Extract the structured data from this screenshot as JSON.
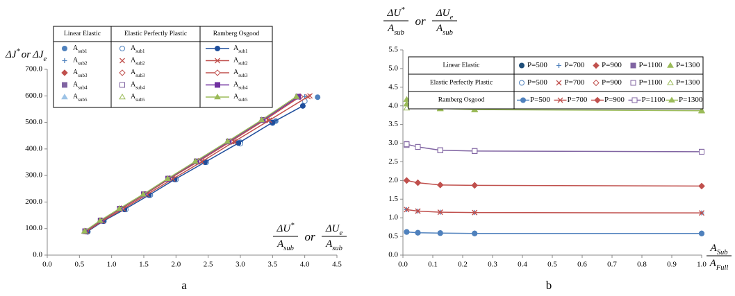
{
  "chart_data": [
    {
      "type": "line",
      "caption": "a",
      "y_label": {
        "terms": [
          "ΔJ*",
          "ΔJe"
        ],
        "joiner": "or"
      },
      "x_label": {
        "fractions": [
          {
            "numerator": "ΔU*",
            "denominator": "Asub"
          },
          {
            "numerator": "ΔUe",
            "denominator": "Asub"
          }
        ],
        "joiner": "or"
      },
      "xlim": [
        0,
        4.5
      ],
      "xticks": [
        {
          "value": 0,
          "label": "0.0"
        },
        0.5,
        {
          "value": 1,
          "label": "1.0"
        },
        1.5,
        {
          "value": 2,
          "label": "2.0"
        },
        2.5,
        {
          "value": 3,
          "label": "3.0"
        },
        3.5,
        {
          "value": 4,
          "label": "4.0"
        },
        4.5
      ],
      "ylim": [
        0,
        700
      ],
      "yticks": [
        {
          "value": 0,
          "label": "0.0"
        },
        {
          "value": 100,
          "label": "100.0"
        },
        {
          "value": 200,
          "label": "200.0"
        },
        {
          "value": 300,
          "label": "300.0"
        },
        {
          "value": 400,
          "label": "400.0"
        },
        {
          "value": 500,
          "label": "500.0"
        },
        {
          "value": 600,
          "label": "600.0"
        },
        {
          "value": 700,
          "label": "700.0"
        }
      ],
      "grid": false,
      "legend": {
        "position": "upper left",
        "layout": "columns",
        "groups": [
          "Linear Elastic",
          "Elastic Perfectly Plastic",
          "Ramberg Osgood"
        ]
      },
      "series": [
        {
          "name": "Asub1",
          "group": 0,
          "color": "#4f81bd",
          "marker": "circle",
          "hollow": false,
          "line": false,
          "x": [
            0.63,
            0.88,
            1.22,
            1.6,
            2.0,
            2.47,
            3.0,
            3.55,
            4.2
          ],
          "values": [
            88,
            128,
            172,
            226,
            285,
            350,
            425,
            505,
            595
          ]
        },
        {
          "name": "Asub2",
          "group": 0,
          "color": "#4f81bd",
          "marker": "plus",
          "hollow": false,
          "line": false,
          "x": [
            0.61,
            0.86,
            1.18,
            1.55,
            1.95,
            2.4,
            2.9,
            3.45,
            4.0
          ],
          "values": [
            89,
            129,
            174,
            228,
            287,
            352,
            427,
            508,
            597
          ]
        },
        {
          "name": "Asub3",
          "group": 0,
          "color": "#c0504d",
          "marker": "diamond",
          "hollow": false,
          "line": false,
          "x": [
            0.6,
            0.84,
            1.15,
            1.52,
            1.9,
            2.35,
            2.85,
            3.4,
            3.92
          ],
          "values": [
            90,
            130,
            175,
            229,
            288,
            353,
            428,
            509,
            597
          ]
        },
        {
          "name": "Asub4",
          "group": 0,
          "color": "#8064a2",
          "marker": "square",
          "hollow": false,
          "line": false,
          "x": [
            0.59,
            0.83,
            1.13,
            1.5,
            1.88,
            2.32,
            2.82,
            3.37,
            3.9
          ],
          "values": [
            90,
            130,
            175,
            229,
            288,
            353,
            428,
            509,
            597
          ]
        },
        {
          "name": "Asub5",
          "group": 0,
          "color": "#9dc3e6",
          "marker": "triangle",
          "hollow": false,
          "line": false,
          "x": [
            0.58,
            0.82,
            1.12,
            1.49,
            1.87,
            2.3,
            2.8,
            3.35,
            3.88
          ],
          "values": [
            90,
            130,
            175,
            229,
            288,
            353,
            428,
            509,
            597
          ]
        },
        {
          "name": "Asub1",
          "group": 1,
          "color": "#4f81bd",
          "marker": "circle",
          "hollow": true,
          "line": false,
          "x": [
            0.63,
            0.88,
            1.22,
            1.6,
            2.0,
            2.47,
            3.0,
            3.5,
            4.0
          ],
          "values": [
            88,
            128,
            172,
            226,
            285,
            350,
            420,
            497,
            580
          ]
        },
        {
          "name": "Asub2",
          "group": 1,
          "color": "#c0504d",
          "marker": "x",
          "hollow": false,
          "line": false,
          "x": [
            0.61,
            0.86,
            1.18,
            1.55,
            1.95,
            2.4,
            2.92,
            3.45,
            4.08
          ],
          "values": [
            89,
            129,
            174,
            228,
            287,
            352,
            427,
            508,
            600
          ]
        },
        {
          "name": "Asub3",
          "group": 1,
          "color": "#c0504d",
          "marker": "diamond",
          "hollow": true,
          "line": false,
          "x": [
            0.6,
            0.84,
            1.15,
            1.52,
            1.9,
            2.35,
            2.85,
            3.38,
            3.93
          ],
          "values": [
            90,
            130,
            175,
            229,
            288,
            353,
            428,
            509,
            597
          ]
        },
        {
          "name": "Asub4",
          "group": 1,
          "color": "#8064a2",
          "marker": "square",
          "hollow": true,
          "line": false,
          "x": [
            0.59,
            0.83,
            1.13,
            1.5,
            1.88,
            2.32,
            2.82,
            3.35,
            3.9
          ],
          "values": [
            90,
            130,
            175,
            229,
            288,
            353,
            428,
            509,
            597
          ]
        },
        {
          "name": "Asub5",
          "group": 1,
          "color": "#9bbb59",
          "marker": "triangle",
          "hollow": true,
          "line": false,
          "x": [
            0.58,
            0.82,
            1.12,
            1.49,
            1.87,
            2.3,
            2.8,
            3.33,
            3.87
          ],
          "values": [
            90,
            130,
            175,
            229,
            288,
            353,
            428,
            509,
            597
          ]
        },
        {
          "name": "Asub1",
          "group": 2,
          "color": "#1f4e9c",
          "marker": "circle",
          "hollow": false,
          "line": true,
          "x": [
            0.62,
            0.87,
            1.2,
            1.58,
            1.98,
            2.45,
            2.97,
            3.5,
            3.97
          ],
          "values": [
            88,
            128,
            172,
            226,
            285,
            350,
            422,
            500,
            562
          ]
        },
        {
          "name": "Asub2",
          "group": 2,
          "color": "#c0504d",
          "marker": "x",
          "hollow": false,
          "line": true,
          "x": [
            0.61,
            0.86,
            1.18,
            1.55,
            1.95,
            2.4,
            2.9,
            3.45,
            4.05
          ],
          "values": [
            89,
            129,
            174,
            228,
            287,
            352,
            427,
            508,
            597
          ]
        },
        {
          "name": "Asub3",
          "group": 2,
          "color": "#c0504d",
          "marker": "diamond",
          "hollow": true,
          "line": true,
          "x": [
            0.6,
            0.84,
            1.15,
            1.52,
            1.9,
            2.35,
            2.85,
            3.38,
            3.93
          ],
          "values": [
            90,
            130,
            175,
            229,
            288,
            353,
            428,
            509,
            597
          ]
        },
        {
          "name": "Asub4",
          "group": 2,
          "color": "#7030a0",
          "marker": "square",
          "hollow": false,
          "line": true,
          "x": [
            0.59,
            0.83,
            1.13,
            1.5,
            1.88,
            2.32,
            2.82,
            3.35,
            3.9
          ],
          "values": [
            90,
            130,
            175,
            229,
            288,
            353,
            428,
            509,
            597
          ]
        },
        {
          "name": "Asub5",
          "group": 2,
          "color": "#9bbb59",
          "marker": "triangle",
          "hollow": false,
          "line": true,
          "x": [
            0.58,
            0.82,
            1.12,
            1.49,
            1.87,
            2.3,
            2.8,
            3.33,
            3.87
          ],
          "values": [
            90,
            130,
            175,
            229,
            288,
            353,
            428,
            509,
            597
          ]
        }
      ]
    },
    {
      "type": "line",
      "caption": "b",
      "y_label": {
        "fractions": [
          {
            "numerator": "ΔU*",
            "denominator": "Asub"
          },
          {
            "numerator": "ΔUe",
            "denominator": "Asub"
          }
        ],
        "joiner": "or"
      },
      "x_label": {
        "fractions": [
          {
            "numerator": "ASub",
            "denominator": "AFull"
          }
        ]
      },
      "x": [
        0.0125,
        0.05,
        0.125,
        0.24,
        1.0
      ],
      "xlim": [
        0,
        1
      ],
      "xticks": [
        {
          "value": 0,
          "label": "0.0"
        },
        0.1,
        0.2,
        0.3,
        0.4,
        0.5,
        0.6,
        0.7,
        0.8,
        0.9,
        {
          "value": 1,
          "label": "1.0"
        }
      ],
      "ylim": [
        0,
        5.5
      ],
      "yticks": [
        {
          "value": 0,
          "label": "0.0"
        },
        0.5,
        {
          "value": 1,
          "label": "1.0"
        },
        1.5,
        {
          "value": 2,
          "label": "2.0"
        },
        2.5,
        {
          "value": 3,
          "label": "3.0"
        },
        3.5,
        {
          "value": 4,
          "label": "4.0"
        },
        4.5,
        {
          "value": 5,
          "label": "5.0"
        },
        5.5
      ],
      "grid": false,
      "legend": {
        "position": "upper right",
        "layout": "rows",
        "groups": [
          "Linear Elastic",
          "Elastic Perfectly Plastic",
          "Ramberg Osgood"
        ]
      },
      "series": [
        {
          "name": "P=500",
          "group": 0,
          "color": "#1f4e79",
          "marker": "circle",
          "hollow": false,
          "line": false,
          "values": [
            0.62,
            0.6,
            0.59,
            0.58,
            0.58
          ]
        },
        {
          "name": "P=700",
          "group": 0,
          "color": "#4f81bd",
          "marker": "plus",
          "hollow": false,
          "line": false,
          "values": [
            1.22,
            1.18,
            1.15,
            1.14,
            1.13
          ]
        },
        {
          "name": "P=900",
          "group": 0,
          "color": "#c0504d",
          "marker": "diamond",
          "hollow": false,
          "line": false,
          "values": [
            2.0,
            1.94,
            1.88,
            1.87,
            1.85
          ]
        },
        {
          "name": "P=1100",
          "group": 0,
          "color": "#8064a2",
          "marker": "square",
          "hollow": false,
          "line": false,
          "values": [
            2.98,
            2.9,
            2.81,
            2.79,
            2.77
          ]
        },
        {
          "name": "P=1300",
          "group": 0,
          "color": "#9bbb59",
          "marker": "triangle",
          "hollow": false,
          "line": false,
          "values": [
            4.17,
            4.08,
            3.94,
            3.9,
            3.87
          ]
        },
        {
          "name": "P=500",
          "group": 1,
          "color": "#4f81bd",
          "marker": "circle",
          "hollow": true,
          "line": false,
          "values": [
            0.62,
            0.6,
            0.59,
            0.58,
            0.58
          ]
        },
        {
          "name": "P=700",
          "group": 1,
          "color": "#c0504d",
          "marker": "x",
          "hollow": false,
          "line": false,
          "values": [
            1.22,
            1.18,
            1.15,
            1.14,
            1.13
          ]
        },
        {
          "name": "P=900",
          "group": 1,
          "color": "#c0504d",
          "marker": "diamond",
          "hollow": true,
          "line": false,
          "values": [
            2.0,
            1.94,
            1.88,
            1.87,
            1.85
          ]
        },
        {
          "name": "P=1100",
          "group": 1,
          "color": "#8064a2",
          "marker": "square",
          "hollow": true,
          "line": false,
          "values": [
            2.95,
            2.9,
            2.81,
            2.79,
            2.77
          ]
        },
        {
          "name": "P=1300",
          "group": 1,
          "color": "#9bbb59",
          "marker": "triangle",
          "hollow": true,
          "line": false,
          "values": [
            3.94,
            4.05,
            3.92,
            3.89,
            3.86
          ]
        },
        {
          "name": "P=500",
          "group": 2,
          "color": "#4f81bd",
          "marker": "circle",
          "hollow": false,
          "line": true,
          "values": [
            0.62,
            0.6,
            0.59,
            0.58,
            0.58
          ]
        },
        {
          "name": "P=700",
          "group": 2,
          "color": "#c0504d",
          "marker": "x",
          "hollow": false,
          "line": true,
          "values": [
            1.22,
            1.18,
            1.15,
            1.14,
            1.13
          ]
        },
        {
          "name": "P=900",
          "group": 2,
          "color": "#c0504d",
          "marker": "diamond",
          "hollow": false,
          "line": true,
          "values": [
            2.0,
            1.94,
            1.88,
            1.87,
            1.85
          ]
        },
        {
          "name": "P=1100",
          "group": 2,
          "color": "#8064a2",
          "marker": "square",
          "hollow": true,
          "line": true,
          "values": [
            2.97,
            2.9,
            2.81,
            2.79,
            2.77
          ]
        },
        {
          "name": "P=1300",
          "group": 2,
          "color": "#9bbb59",
          "marker": "triangle",
          "hollow": false,
          "line": true,
          "values": [
            4.05,
            4.03,
            3.93,
            3.9,
            3.87
          ]
        }
      ]
    }
  ]
}
